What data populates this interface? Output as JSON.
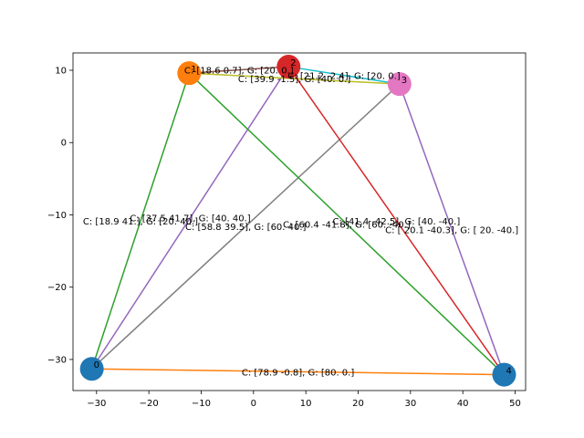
{
  "chart_data": {
    "type": "scatter",
    "xlim": [
      -34.5,
      52
    ],
    "ylim": [
      -34.3,
      12.4
    ],
    "x_ticks": [
      -30,
      -20,
      -10,
      0,
      10,
      20,
      30,
      40,
      50
    ],
    "y_ticks": [
      -30,
      -20,
      -10,
      0,
      10
    ],
    "grid": false,
    "nodes": [
      {
        "id": "0",
        "x": -30.9,
        "y": -31.3,
        "color": "#1f77b4"
      },
      {
        "id": "1",
        "x": -12.3,
        "y": 9.6,
        "color": "#ff7f0e"
      },
      {
        "id": "2",
        "x": 6.7,
        "y": 10.5,
        "color": "#d62728"
      },
      {
        "id": "3",
        "x": 27.9,
        "y": 8.1,
        "color": "#e377c2"
      },
      {
        "id": "4",
        "x": 47.9,
        "y": -32.1,
        "color": "#1f77b4"
      }
    ],
    "edges": [
      {
        "from": 0,
        "to": 1,
        "color": "#2ca02c",
        "label": "C: [18.9 41.], G: [20. 40.]"
      },
      {
        "from": 0,
        "to": 2,
        "color": "#9467bd",
        "label": "C: [37.5 41.7], G: [40. 40.]"
      },
      {
        "from": 0,
        "to": 3,
        "color": "#7f7f7f",
        "label": "C: [58.8 39.5], G: [60. 40.]"
      },
      {
        "from": 0,
        "to": 4,
        "color": "#ff7f0e",
        "label": "C: [78.9 -0.8], G: [80. 0.]"
      },
      {
        "from": 1,
        "to": 2,
        "color": "#8c564b",
        "label": "C: [18.6 0.7], G: [20. 0.]"
      },
      {
        "from": 1,
        "to": 3,
        "color": "#bcbd22",
        "label": "C: [39.9 -1.5], G: [40. 0.]"
      },
      {
        "from": 1,
        "to": 4,
        "color": "#2ca02c",
        "label": "C: [60.4 -41.8], G: [60. -40.]"
      },
      {
        "from": 2,
        "to": 3,
        "color": "#17becf",
        "label": "C: [21.2 -2.4], G: [20. 0.]"
      },
      {
        "from": 2,
        "to": 4,
        "color": "#d62728",
        "label": "C: [41.4 -42.5], G: [40. -40.]"
      },
      {
        "from": 3,
        "to": 4,
        "color": "#9467bd",
        "label": "C: [ 20.1 -40.3], G: [ 20. -40.]"
      }
    ]
  }
}
